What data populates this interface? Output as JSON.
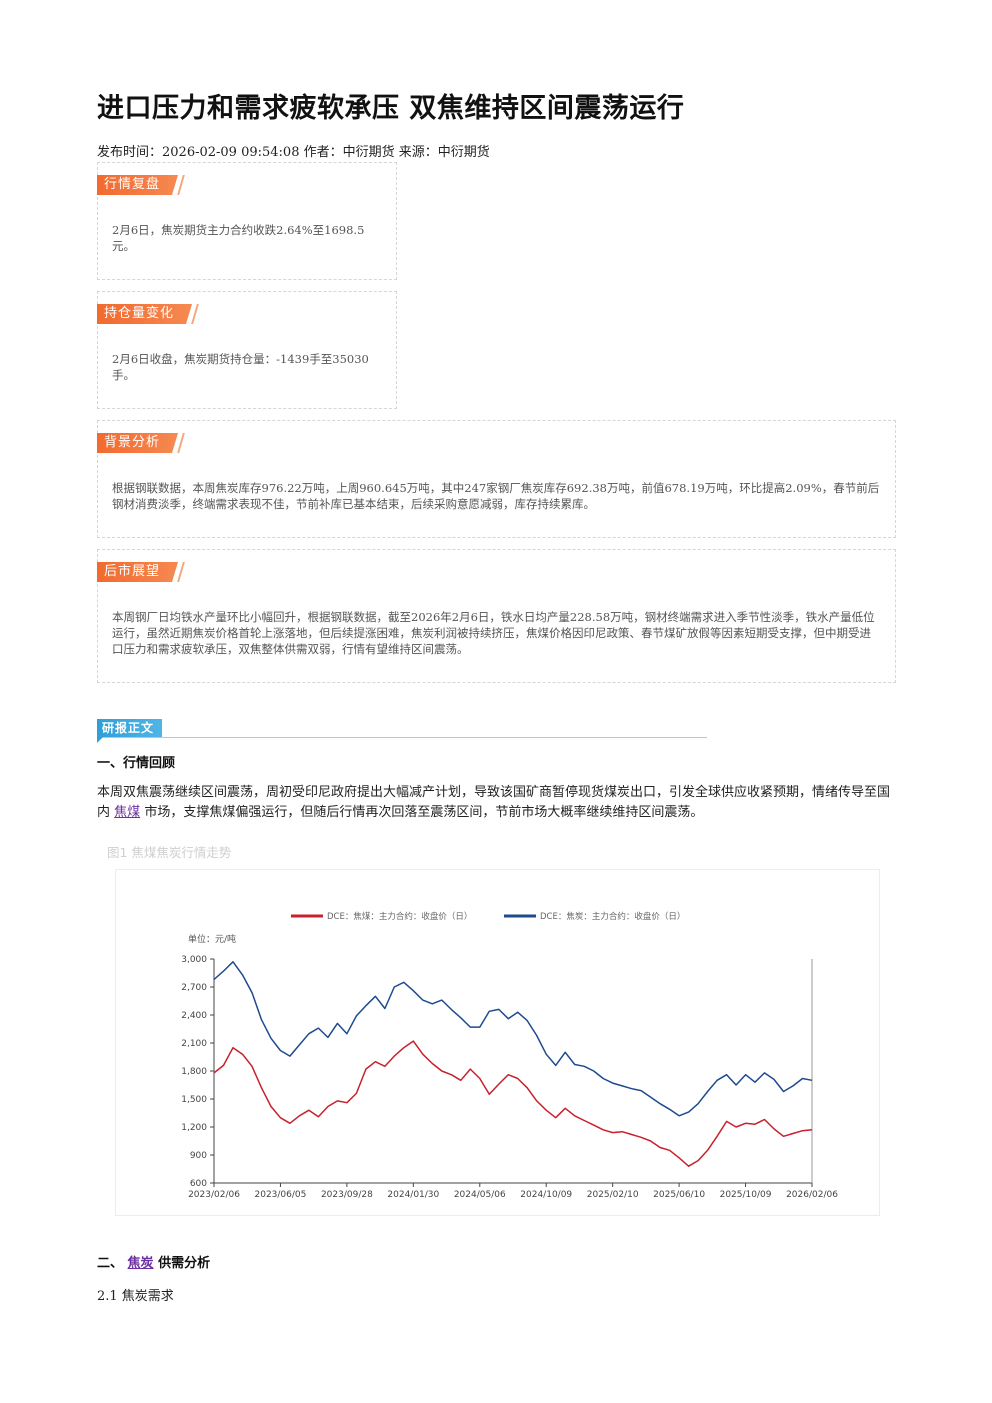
{
  "article": {
    "title": "进口压力和需求疲软承压 双焦维持区间震荡运行",
    "meta": "发布时间：2026-02-09 09:54:08 作者：中衍期货 来源：中衍期货"
  },
  "boxes": {
    "market": {
      "tag": "行情复盘",
      "text": "2月6日，焦炭期货主力合约收跌2.64%至1698.5元。"
    },
    "position": {
      "tag": "持仓量变化",
      "text": "2月6日收盘，焦炭期货持仓量：-1439手至35030手。"
    },
    "background": {
      "tag": "背景分析",
      "text": "根据钢联数据，本周焦炭库存976.22万吨，上周960.645万吨，其中247家钢厂焦炭库存692.38万吨，前值678.19万吨，环比提高2.09%，春节前后钢材消费淡季，终端需求表现不佳，节前补库已基本结束，后续采购意愿减弱，库存持续累库。"
    },
    "outlook": {
      "tag": "后市展望",
      "text": "本周钢厂日均铁水产量环比小幅回升，根据钢联数据，截至2026年2月6日，铁水日均产量228.58万吨，钢材终端需求进入季节性淡季，铁水产量低位运行，虽然近期焦炭价格首轮上涨落地，但后续提涨困难，焦炭利润被持续挤压，焦煤价格因印尼政策、春节煤矿放假等因素短期受支撑，但中期受进口压力和需求疲软承压，双焦整体供需双弱，行情有望维持区间震荡。"
    }
  },
  "report": {
    "tag": "研报正文",
    "sec1_title": "一、行情回顾",
    "sec1_p1": "本周双焦震荡继续区间震荡，周初受印尼政府提出大幅减产计划，导致该国矿商暂停现货煤炭出口，引发全球供应收紧预期，情绪传导至国内",
    "sec1_link": "焦煤",
    "sec1_p2": "市场，支撑焦煤偏强运行，但随后行情再次回落至震荡区间，节前市场大概率继续维持区间震荡。",
    "fig_caption": "图1 焦煤焦炭行情走势",
    "sec2_prefix": "二、",
    "sec2_link": "焦炭",
    "sec2_suffix": "供需分析",
    "sub21": "2.1 焦炭需求"
  },
  "chart_data": {
    "type": "line",
    "unit_label": "单位：元/吨",
    "x_ticks": [
      "2023/02/06",
      "2023/06/05",
      "2023/09/28",
      "2024/01/30",
      "2024/05/06",
      "2024/10/09",
      "2025/02/10",
      "2025/06/10",
      "2025/10/09",
      "2026/02/06"
    ],
    "ylim": [
      600,
      3000
    ],
    "y_ticks": [
      600,
      900,
      1200,
      1500,
      1800,
      2100,
      2400,
      2700,
      3000
    ],
    "legend_position": "top",
    "series": [
      {
        "name": "DCE：焦煤：主力合约：收盘价（日）",
        "color": "#c8202c",
        "values": [
          1780,
          1860,
          2050,
          1980,
          1850,
          1620,
          1420,
          1300,
          1240,
          1320,
          1380,
          1310,
          1420,
          1480,
          1460,
          1560,
          1820,
          1900,
          1850,
          1960,
          2050,
          2120,
          1980,
          1880,
          1800,
          1760,
          1700,
          1820,
          1720,
          1550,
          1660,
          1760,
          1720,
          1620,
          1480,
          1380,
          1300,
          1400,
          1320,
          1270,
          1220,
          1170,
          1140,
          1150,
          1120,
          1090,
          1050,
          980,
          950,
          870,
          780,
          840,
          950,
          1100,
          1260,
          1200,
          1240,
          1230,
          1280,
          1180,
          1100,
          1130,
          1160,
          1170
        ]
      },
      {
        "name": "DCE：焦炭：主力合约：收盘价（日）",
        "color": "#1e4a8e",
        "values": [
          2780,
          2870,
          2970,
          2830,
          2640,
          2350,
          2150,
          2020,
          1960,
          2080,
          2200,
          2260,
          2160,
          2310,
          2200,
          2390,
          2500,
          2600,
          2470,
          2700,
          2750,
          2660,
          2560,
          2520,
          2560,
          2460,
          2370,
          2270,
          2270,
          2440,
          2460,
          2360,
          2430,
          2340,
          2180,
          1980,
          1860,
          2000,
          1870,
          1850,
          1800,
          1720,
          1670,
          1640,
          1610,
          1590,
          1520,
          1450,
          1390,
          1320,
          1360,
          1450,
          1580,
          1700,
          1760,
          1650,
          1760,
          1680,
          1780,
          1710,
          1580,
          1640,
          1720,
          1700
        ]
      }
    ]
  }
}
